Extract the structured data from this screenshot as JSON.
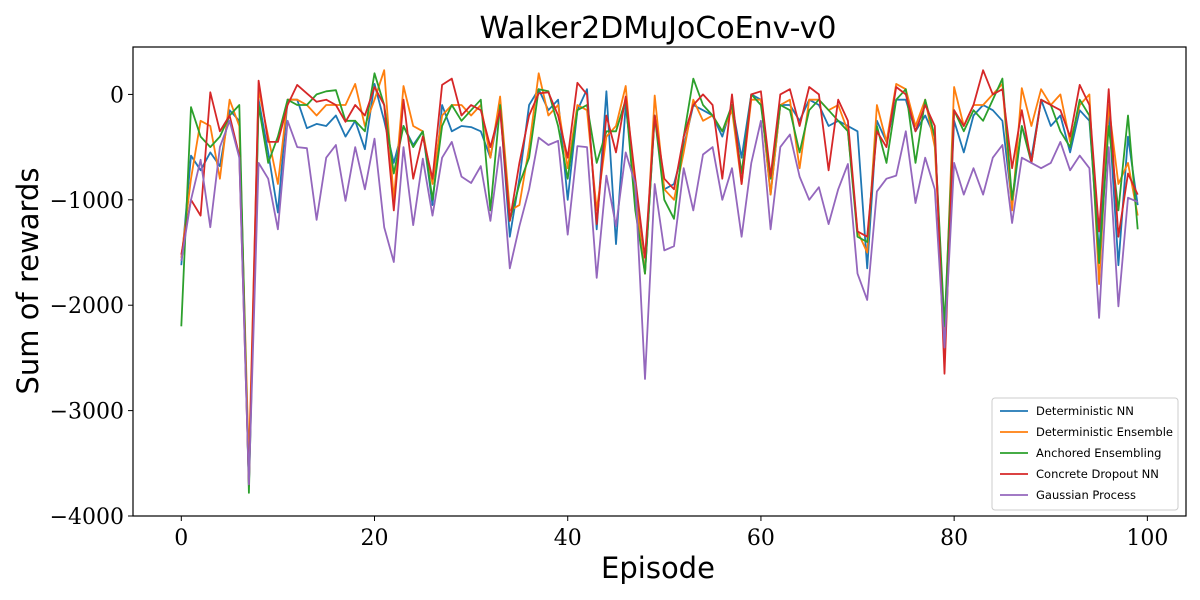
{
  "chart_data": {
    "type": "line",
    "title": "Walker2DMuJoCoEnv-v0",
    "xlabel": "Episode",
    "ylabel": "Sum of rewards",
    "xlim": [
      -5,
      104
    ],
    "ylim": [
      -4000,
      450
    ],
    "xticks": [
      0,
      20,
      40,
      60,
      80,
      100
    ],
    "yticks": [
      0,
      -1000,
      -2000,
      -3000,
      -4000
    ],
    "xtick_labels": [
      "0",
      "20",
      "40",
      "60",
      "80",
      "100"
    ],
    "ytick_labels": [
      "0",
      "−1000",
      "−2000",
      "−3000",
      "−4000"
    ],
    "grid": false,
    "legend_position": "lower-right",
    "x": [
      0,
      1,
      2,
      3,
      4,
      5,
      6,
      7,
      8,
      9,
      10,
      11,
      12,
      13,
      14,
      15,
      16,
      17,
      18,
      19,
      20,
      21,
      22,
      23,
      24,
      25,
      26,
      27,
      28,
      29,
      30,
      31,
      32,
      33,
      34,
      35,
      36,
      37,
      38,
      39,
      40,
      41,
      42,
      43,
      44,
      45,
      46,
      47,
      48,
      49,
      50,
      51,
      52,
      53,
      54,
      55,
      56,
      57,
      58,
      59,
      60,
      61,
      62,
      63,
      64,
      65,
      66,
      67,
      68,
      69,
      70,
      71,
      72,
      73,
      74,
      75,
      76,
      77,
      78,
      79,
      80,
      81,
      82,
      83,
      84,
      85,
      86,
      87,
      88,
      89,
      90,
      91,
      92,
      93,
      94,
      95,
      96,
      97,
      98,
      99
    ],
    "series": [
      {
        "name": "Deterministic NN",
        "color": "#1f77b4",
        "values": [
          -1620,
          -580,
          -720,
          -550,
          -680,
          -150,
          -250,
          -3720,
          -50,
          -550,
          -1120,
          -50,
          -50,
          -320,
          -280,
          -300,
          -200,
          -400,
          -250,
          -520,
          100,
          -250,
          -650,
          -300,
          -480,
          -350,
          -1050,
          -100,
          -350,
          -300,
          -310,
          -350,
          -600,
          -100,
          -1350,
          -800,
          -100,
          50,
          -150,
          -50,
          -1000,
          -150,
          50,
          -1280,
          30,
          -1420,
          -100,
          -900,
          -1700,
          -200,
          -900,
          -850,
          -500,
          -100,
          -150,
          -200,
          -400,
          -100,
          -600,
          0,
          -50,
          -950,
          -100,
          -100,
          -250,
          -50,
          -100,
          -300,
          -250,
          -300,
          -350,
          -1650,
          -250,
          -450,
          -50,
          -50,
          -350,
          -200,
          -400,
          -2300,
          -250,
          -550,
          -200,
          -100,
          -150,
          -250,
          -1050,
          -300,
          -600,
          -50,
          -300,
          -200,
          -550,
          -150,
          -250,
          -1500,
          -150,
          -1620,
          -400,
          -1050
        ]
      },
      {
        "name": "Deterministic Ensemble",
        "color": "#ff7f0e",
        "values": [
          -1550,
          -800,
          -250,
          -300,
          -800,
          -50,
          -300,
          -3500,
          50,
          -400,
          -850,
          -50,
          -50,
          -100,
          -200,
          -100,
          -100,
          -100,
          100,
          -300,
          -50,
          230,
          -1000,
          80,
          -300,
          -350,
          -850,
          -200,
          -100,
          -100,
          -200,
          -100,
          -600,
          -20,
          -1100,
          -1050,
          -500,
          200,
          -200,
          -100,
          -700,
          -100,
          -150,
          -1100,
          -400,
          -300,
          80,
          -950,
          -1700,
          -10,
          -900,
          -1000,
          -550,
          -50,
          -250,
          -200,
          -350,
          -150,
          -850,
          -50,
          -50,
          -950,
          -100,
          -50,
          -700,
          -50,
          -50,
          -150,
          -100,
          -350,
          -1300,
          -1500,
          -100,
          -450,
          100,
          50,
          -300,
          -50,
          -500,
          -2300,
          70,
          -300,
          -100,
          -100,
          0,
          100,
          -1100,
          60,
          -300,
          50,
          -100,
          0,
          -450,
          -100,
          0,
          -1800,
          -100,
          -850,
          -650,
          -1150
        ]
      },
      {
        "name": "Anchored Ensembling",
        "color": "#2ca02c",
        "values": [
          -2200,
          -120,
          -400,
          -500,
          -400,
          -200,
          -100,
          -3780,
          -100,
          -650,
          -400,
          -50,
          -100,
          -100,
          0,
          30,
          40,
          -250,
          -250,
          -350,
          200,
          -100,
          -750,
          -300,
          -500,
          -350,
          -1000,
          -300,
          -100,
          -250,
          -150,
          -50,
          -1100,
          -100,
          -1200,
          -850,
          -600,
          50,
          30,
          -300,
          -800,
          -150,
          -100,
          -650,
          -350,
          -350,
          -50,
          -1100,
          -1700,
          -200,
          -1000,
          -1180,
          -400,
          150,
          -100,
          -200,
          -350,
          -100,
          -750,
          0,
          -100,
          -800,
          -100,
          -150,
          -550,
          -150,
          -50,
          -150,
          -250,
          -350,
          -1350,
          -1400,
          -300,
          -650,
          -50,
          50,
          -650,
          -50,
          -400,
          -2200,
          -150,
          -350,
          -150,
          -250,
          -50,
          150,
          -1000,
          -300,
          -650,
          -50,
          -100,
          -350,
          -500,
          -50,
          -200,
          -1600,
          -300,
          -1100,
          -200,
          -1280
        ]
      },
      {
        "name": "Concrete Dropout NN",
        "color": "#d62728",
        "values": [
          -1520,
          -1000,
          -1150,
          20,
          -350,
          -200,
          -580,
          -3700,
          130,
          -450,
          -450,
          -100,
          90,
          10,
          -70,
          -50,
          -100,
          -260,
          -100,
          -200,
          70,
          -100,
          -1100,
          -50,
          -800,
          -400,
          -800,
          90,
          150,
          -200,
          -100,
          -150,
          -500,
          -150,
          -1200,
          -650,
          -200,
          10,
          20,
          -200,
          -600,
          110,
          0,
          -1230,
          -200,
          -550,
          -20,
          -800,
          -1550,
          -200,
          -800,
          -900,
          -400,
          -100,
          0,
          -100,
          -800,
          0,
          -850,
          0,
          30,
          -780,
          0,
          50,
          -300,
          70,
          0,
          -720,
          -50,
          -250,
          -1300,
          -1350,
          -350,
          -500,
          70,
          0,
          -350,
          -100,
          -300,
          -2650,
          -150,
          -300,
          -100,
          230,
          0,
          50,
          -700,
          -150,
          -650,
          -50,
          -100,
          -150,
          -400,
          90,
          -100,
          -1300,
          50,
          -1350,
          -750,
          -950
        ]
      },
      {
        "name": "Gaussian Process",
        "color": "#9467bd",
        "values": [
          -1580,
          -1000,
          -620,
          -1260,
          -500,
          -250,
          -600,
          -3700,
          -650,
          -800,
          -1280,
          -250,
          -500,
          -510,
          -1190,
          -600,
          -480,
          -1010,
          -500,
          -900,
          -420,
          -1260,
          -1590,
          -500,
          -1240,
          -610,
          -1150,
          -600,
          -450,
          -780,
          -840,
          -680,
          -1200,
          -500,
          -1650,
          -1250,
          -900,
          -410,
          -480,
          -440,
          -1330,
          -490,
          -500,
          -1740,
          -770,
          -1250,
          -550,
          -850,
          -2700,
          -850,
          -1480,
          -1440,
          -700,
          -1100,
          -570,
          -500,
          -1000,
          -700,
          -1350,
          -650,
          -250,
          -1280,
          -500,
          -380,
          -780,
          -1000,
          -880,
          -1230,
          -900,
          -660,
          -1700,
          -1950,
          -920,
          -800,
          -770,
          -350,
          -1030,
          -600,
          -900,
          -2400,
          -650,
          -950,
          -700,
          -950,
          -600,
          -480,
          -1220,
          -600,
          -650,
          -700,
          -650,
          -450,
          -720,
          -580,
          -700,
          -2120,
          -500,
          -2010,
          -980,
          -1020
        ]
      }
    ]
  }
}
